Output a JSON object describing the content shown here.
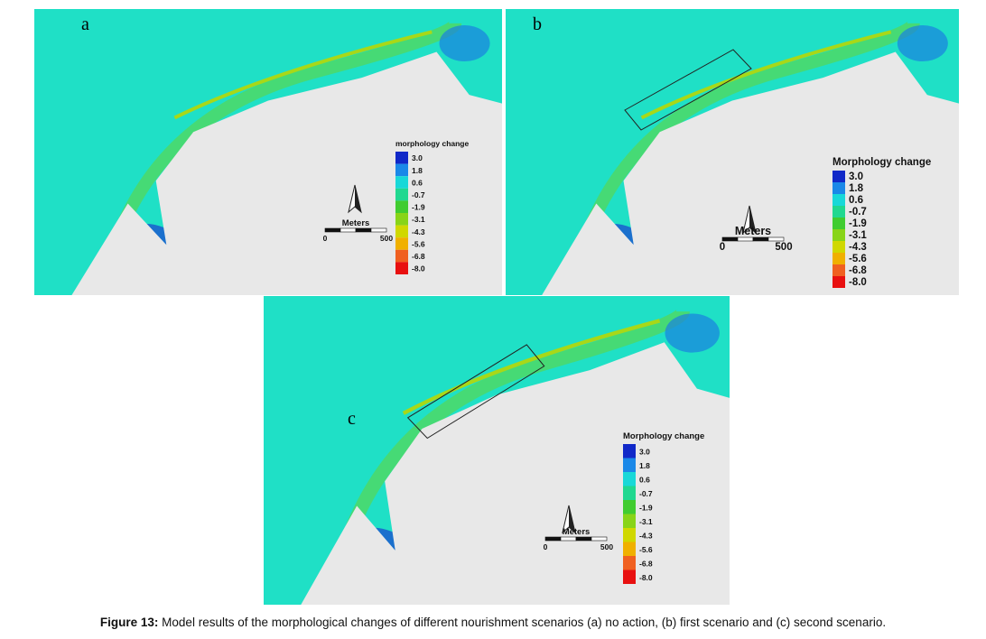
{
  "panels": [
    {
      "label": "a",
      "legend_title": "morphology change",
      "legend_labels": [
        "3.0",
        "1.8",
        "0.6",
        "-0.7",
        "-1.9",
        "-3.1",
        "-4.3",
        "-5.6",
        "-6.8",
        "-8.0"
      ],
      "scale_title": "Meters",
      "scale_start": "0",
      "scale_end": "500"
    },
    {
      "label": "b",
      "legend_title": "Morphology change",
      "legend_labels": [
        "3.0",
        "1.8",
        "0.6",
        "-0.7",
        "-1.9",
        "-3.1",
        "-4.3",
        "-5.6",
        "-6.8",
        "-8.0"
      ],
      "scale_title": "Meters",
      "scale_start": "0",
      "scale_end": "500"
    },
    {
      "label": "c",
      "legend_title": "Morphology change",
      "legend_labels": [
        "3.0",
        "1.8",
        "0.6",
        "-0.7",
        "-1.9",
        "-3.1",
        "-4.3",
        "-5.6",
        "-6.8",
        "-8.0"
      ],
      "scale_title": "Meters",
      "scale_start": "0",
      "scale_end": "500"
    }
  ],
  "caption": {
    "label": "Figure 13:",
    "text": " Model results of the morphological changes of different nourishment scenarios (a) no action, (b) first scenario and (c) second scenario."
  }
}
